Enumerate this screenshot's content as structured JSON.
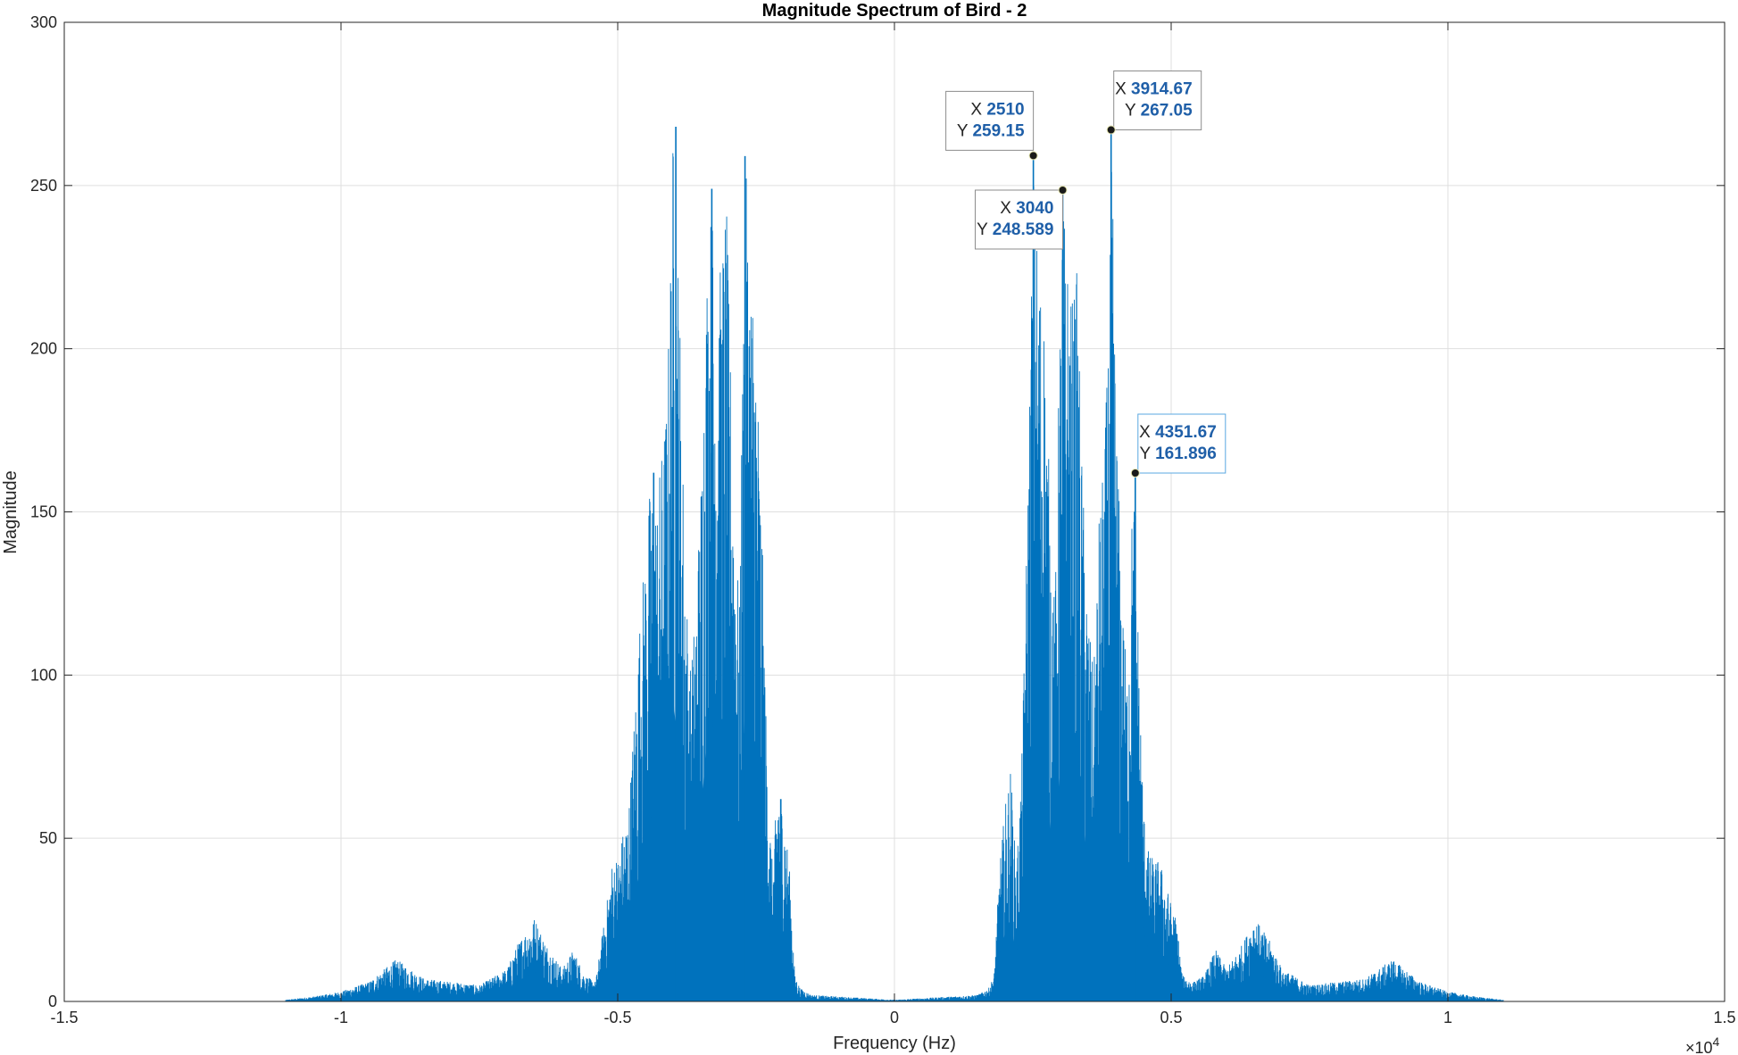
{
  "chart_data": {
    "type": "line",
    "title": "Magnitude Spectrum of Bird - 2",
    "xlabel": "Frequency (Hz)",
    "ylabel": "Magnitude",
    "xlim": [
      -15000,
      15000
    ],
    "ylim": [
      0,
      300
    ],
    "x_tick_labels": [
      "-1.5",
      "-1",
      "-0.5",
      "0",
      "0.5",
      "1",
      "1.5"
    ],
    "x_tick_values": [
      -15000,
      -10000,
      -5000,
      0,
      5000,
      10000,
      15000
    ],
    "x_exponent_label": "×10",
    "x_exponent_power": "4",
    "y_tick_labels": [
      "0",
      "50",
      "100",
      "150",
      "200",
      "250",
      "300"
    ],
    "y_tick_values": [
      0,
      50,
      100,
      150,
      200,
      250,
      300
    ],
    "grid": true,
    "series_color": "#0072bd",
    "envelope": {
      "x": [
        -11000,
        -10500,
        -10000,
        -9500,
        -9000,
        -8500,
        -8000,
        -7500,
        -7000,
        -6800,
        -6500,
        -6300,
        -6000,
        -5800,
        -5600,
        -5400,
        -5200,
        -5100,
        -5000,
        -4800,
        -4600,
        -4400,
        -4300,
        -4200,
        -4100,
        -4000,
        -3950,
        -3900,
        -3800,
        -3700,
        -3600,
        -3500,
        -3400,
        -3300,
        -3200,
        -3100,
        -3040,
        -3000,
        -2900,
        -2800,
        -2700,
        -2600,
        -2510,
        -2400,
        -2300,
        -2200,
        -2100,
        -2000,
        -1900,
        -1800,
        -1700,
        -1600,
        -1500,
        -1000,
        -500,
        0,
        500,
        1000,
        1500,
        1600,
        1700,
        1800,
        1900,
        2000,
        2100,
        2200,
        2300,
        2400,
        2510,
        2600,
        2700,
        2800,
        2900,
        3000,
        3040,
        3100,
        3200,
        3300,
        3400,
        3500,
        3600,
        3700,
        3800,
        3900,
        3914.67,
        3950,
        4000,
        4100,
        4200,
        4300,
        4351.67,
        4400,
        4500,
        4600,
        4800,
        5000,
        5100,
        5200,
        5400,
        5600,
        5800,
        6000,
        6300,
        6500,
        6800,
        7000,
        7500,
        8000,
        8500,
        9000,
        9500,
        10000,
        10500,
        11000
      ],
      "y": [
        0.5,
        1.5,
        3,
        6,
        13,
        7,
        6,
        5,
        10,
        18,
        26,
        18,
        10,
        16,
        8,
        6,
        30,
        43,
        45,
        60,
        118,
        162,
        155,
        170,
        190,
        268,
        240,
        230,
        150,
        100,
        120,
        160,
        225,
        249,
        215,
        235,
        249,
        220,
        160,
        120,
        259,
        230,
        215,
        150,
        73,
        40,
        72,
        60,
        42,
        8,
        4,
        3,
        2,
        1.5,
        1,
        0.5,
        1,
        1.5,
        2,
        3,
        4,
        8,
        42,
        60,
        72,
        40,
        73,
        150,
        259,
        230,
        215,
        160,
        120,
        220,
        249,
        235,
        215,
        225,
        160,
        120,
        100,
        150,
        170,
        230,
        267.05,
        240,
        190,
        130,
        100,
        155,
        161.896,
        118,
        60,
        45,
        43,
        30,
        25,
        8,
        6,
        8,
        16,
        10,
        18,
        26,
        18,
        10,
        5,
        6,
        7,
        13,
        6,
        3,
        1.5,
        0.5
      ]
    },
    "datatips": [
      {
        "x_key": "X",
        "x_value": "2510",
        "y_key": "Y",
        "y_value": "259.15",
        "x": 2510,
        "y": 259.15,
        "placement": "upper-left"
      },
      {
        "x_key": "X",
        "x_value": "3040",
        "y_key": "Y",
        "y_value": "248.589",
        "x": 3040,
        "y": 248.589,
        "placement": "lower-left"
      },
      {
        "x_key": "X",
        "x_value": "3914.67",
        "y_key": "Y",
        "y_value": "267.05",
        "x": 3914.67,
        "y": 267.05,
        "placement": "upper-right"
      },
      {
        "x_key": "X",
        "x_value": "4351.67",
        "y_key": "Y",
        "y_value": "161.896",
        "x": 4351.67,
        "y": 161.896,
        "placement": "upper-right"
      }
    ]
  }
}
